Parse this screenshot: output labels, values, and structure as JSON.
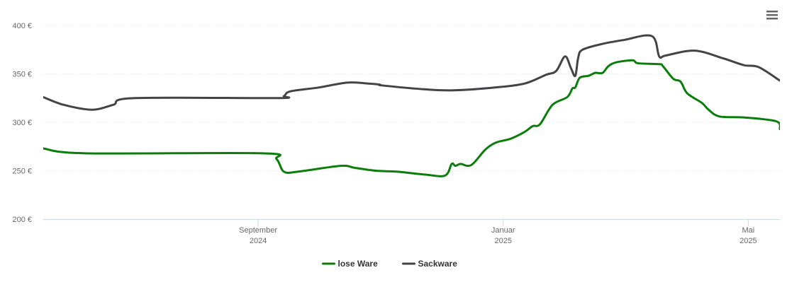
{
  "chart_data": {
    "type": "line",
    "xlim": [
      2024.375,
      2025.376
    ],
    "xticks": [
      {
        "value": 2024.667,
        "label": "September 2024"
      },
      {
        "value": 2025.0,
        "label": "Januar 2025"
      },
      {
        "value": 2025.333,
        "label": "Mai 2025"
      }
    ],
    "ylim": [
      200,
      400
    ],
    "yticks": [
      {
        "value": 200,
        "label": "200 €"
      },
      {
        "value": 250,
        "label": "250 €"
      },
      {
        "value": 300,
        "label": "300 €"
      },
      {
        "value": 350,
        "label": "350 €"
      },
      {
        "value": 400,
        "label": "400 €"
      }
    ],
    "grid": true,
    "legend": "bottom",
    "series": [
      {
        "name": "lose Ware",
        "color": "#0b7d0b",
        "x": [
          2024.375,
          2024.432,
          2024.673,
          2024.692,
          2024.702,
          2024.721,
          2024.779,
          2024.798,
          2024.827,
          2024.856,
          2024.894,
          2024.921,
          2024.93,
          2024.935,
          2024.942,
          2024.952,
          2024.96,
          2024.976,
          2024.99,
          2025.01,
          2025.029,
          2025.04,
          2025.05,
          2025.067,
          2025.087,
          2025.094,
          2025.098,
          2025.104,
          2025.116,
          2025.125,
          2025.135,
          2025.143,
          2025.154,
          2025.176,
          2025.183,
          2025.212,
          2025.217,
          2025.231,
          2025.241,
          2025.25,
          2025.27,
          2025.279,
          2025.294,
          2025.327,
          2025.371,
          2025.376
        ],
        "values": [
          273,
          268,
          268,
          262,
          249,
          249,
          255,
          253,
          250,
          249,
          246,
          245,
          257,
          255,
          257,
          255,
          258,
          272,
          279,
          283,
          290,
          296,
          298,
          318,
          326,
          335,
          336,
          346,
          348,
          351,
          351,
          358,
          362,
          364,
          361,
          360,
          358,
          345,
          342,
          330,
          320,
          313,
          306,
          305,
          301,
          293
        ]
      },
      {
        "name": "Sackware",
        "color": "#434348",
        "x": [
          2024.375,
          2024.403,
          2024.441,
          2024.47,
          2024.499,
          2024.692,
          2024.702,
          2024.711,
          2024.75,
          2024.788,
          2024.817,
          2024.832,
          2024.836,
          2024.894,
          2024.933,
          2024.99,
          2025.029,
          2025.058,
          2025.072,
          2025.084,
          2025.092,
          2025.098,
          2025.102,
          2025.108,
          2025.135,
          2025.164,
          2025.202,
          2025.212,
          2025.221,
          2025.26,
          2025.299,
          2025.327,
          2025.347,
          2025.376
        ],
        "values": [
          326,
          318,
          313,
          318,
          325,
          325,
          327,
          332,
          336,
          341,
          340,
          339,
          338,
          334,
          333,
          336,
          340,
          349,
          353,
          368,
          356,
          348,
          367,
          375,
          381,
          385,
          389,
          368,
          369,
          374,
          366,
          359,
          357,
          343
        ]
      }
    ]
  }
}
